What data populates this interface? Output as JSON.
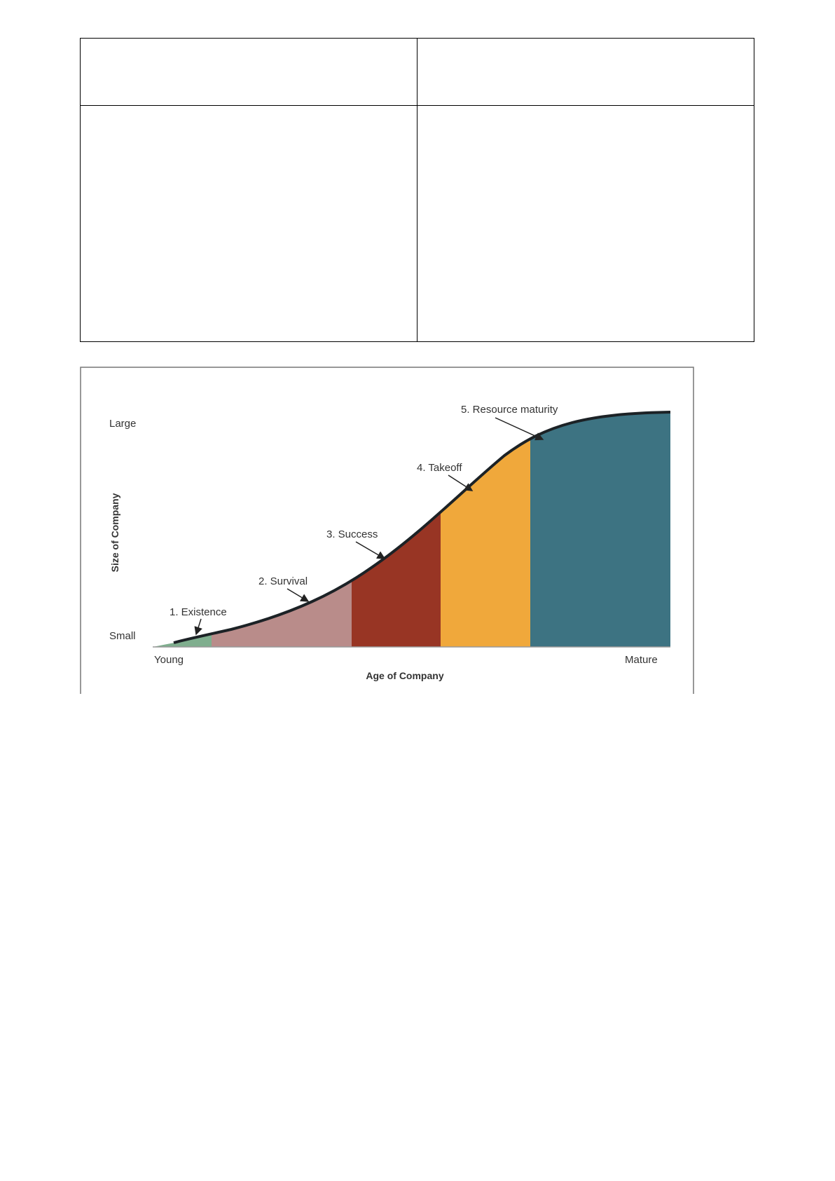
{
  "table": {
    "rows": [
      [
        "",
        ""
      ],
      [
        "",
        ""
      ]
    ]
  },
  "figure": {
    "y_axis_title": "Size of Company",
    "x_axis_title": "Age of Company",
    "y_low": "Small",
    "y_high": "Large",
    "x_low": "Young",
    "x_high": "Mature",
    "stages": [
      {
        "label": "1. Existence",
        "color": "#7fae8e"
      },
      {
        "label": "2. Survival",
        "color": "#b98c8a"
      },
      {
        "label": "3. Success",
        "color": "#983524"
      },
      {
        "label": "4. Takeoff",
        "color": "#f0a83b"
      },
      {
        "label": "5. Resource maturity",
        "color": "#3d7382"
      }
    ]
  }
}
